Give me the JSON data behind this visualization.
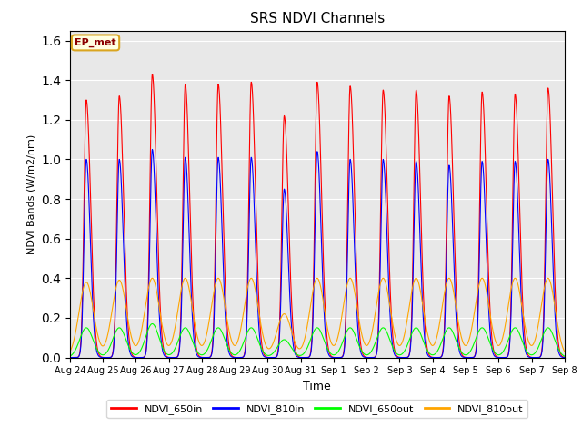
{
  "title": "SRS NDVI Channels",
  "xlabel": "Time",
  "ylabel": "NDVI Bands (W/m2/nm)",
  "ylim": [
    0,
    1.65
  ],
  "annotation": "EP_met",
  "legend_labels": [
    "NDVI_650in",
    "NDVI_810in",
    "NDVI_650out",
    "NDVI_810out"
  ],
  "line_colors": [
    "red",
    "blue",
    "lime",
    "orange"
  ],
  "xtick_labels": [
    "Aug 24",
    "Aug 25",
    "Aug 26",
    "Aug 27",
    "Aug 28",
    "Aug 29",
    "Aug 30",
    "Aug 31",
    "Sep 1",
    "Sep 2",
    "Sep 3",
    "Sep 4",
    "Sep 5",
    "Sep 6",
    "Sep 7",
    "Sep 8"
  ],
  "background_color": "#e8e8e8",
  "num_cycles": 15,
  "peak_650in": [
    1.3,
    1.32,
    1.43,
    1.38,
    1.38,
    1.39,
    1.22,
    1.39,
    1.37,
    1.35,
    1.35,
    1.32,
    1.34,
    1.33,
    1.36
  ],
  "peak_810in": [
    1.0,
    1.0,
    1.05,
    1.01,
    1.01,
    1.01,
    0.85,
    1.04,
    1.0,
    1.0,
    0.99,
    0.97,
    0.99,
    0.99,
    1.0
  ],
  "peak_650out": [
    0.15,
    0.15,
    0.17,
    0.15,
    0.15,
    0.15,
    0.09,
    0.15,
    0.15,
    0.15,
    0.15,
    0.15,
    0.15,
    0.15,
    0.15
  ],
  "peak_810out": [
    0.38,
    0.39,
    0.4,
    0.4,
    0.4,
    0.4,
    0.22,
    0.4,
    0.4,
    0.4,
    0.4,
    0.4,
    0.4,
    0.4,
    0.4
  ],
  "figsize": [
    6.4,
    4.8
  ],
  "dpi": 100
}
